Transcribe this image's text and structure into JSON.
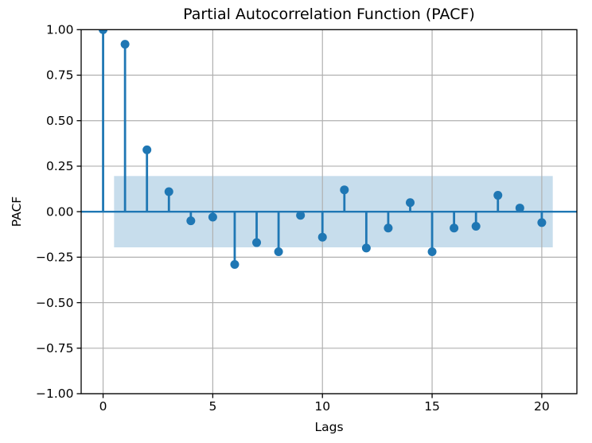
{
  "figure": {
    "background": "#ffffff"
  },
  "chart_data": {
    "type": "stem",
    "title": "Partial Autocorrelation Function (PACF)",
    "xlabel": "Lags",
    "ylabel": "PACF",
    "lags": [
      0,
      1,
      2,
      3,
      4,
      5,
      6,
      7,
      8,
      9,
      10,
      11,
      12,
      13,
      14,
      15,
      16,
      17,
      18,
      19,
      20
    ],
    "pacf_values": [
      1.0,
      0.92,
      0.34,
      0.11,
      -0.05,
      -0.03,
      -0.29,
      -0.17,
      -0.22,
      -0.02,
      -0.14,
      0.12,
      -0.2,
      -0.09,
      0.05,
      -0.22,
      -0.09,
      -0.08,
      0.09,
      0.02,
      -0.06
    ],
    "confidence_band": {
      "x_start": 0.5,
      "x_end": 20.5,
      "upper": 0.196,
      "lower": -0.196,
      "fill": "#1f77b4",
      "opacity": 0.25
    },
    "xlim": [
      -1.0,
      21.6
    ],
    "ylim": [
      -1.0,
      1.0
    ],
    "xticks": {
      "values": [
        0,
        5,
        10,
        15,
        20
      ],
      "labels": [
        "0",
        "5",
        "10",
        "15",
        "20"
      ]
    },
    "yticks": {
      "values": [
        1.0,
        0.75,
        0.5,
        0.25,
        0.0,
        -0.25,
        -0.5,
        -0.75,
        -1.0
      ],
      "labels": [
        "1.00",
        "0.75",
        "0.50",
        "0.25",
        "0.00",
        "−0.25",
        "−0.50",
        "−0.75",
        "−1.00"
      ]
    },
    "grid": true,
    "legend": null,
    "colors": {
      "stem": "#1f77b4",
      "marker": "#1f77b4",
      "baseline": "#1f77b4",
      "grid": "#b0b0b0",
      "spine": "#000000",
      "text": "#000000"
    }
  }
}
